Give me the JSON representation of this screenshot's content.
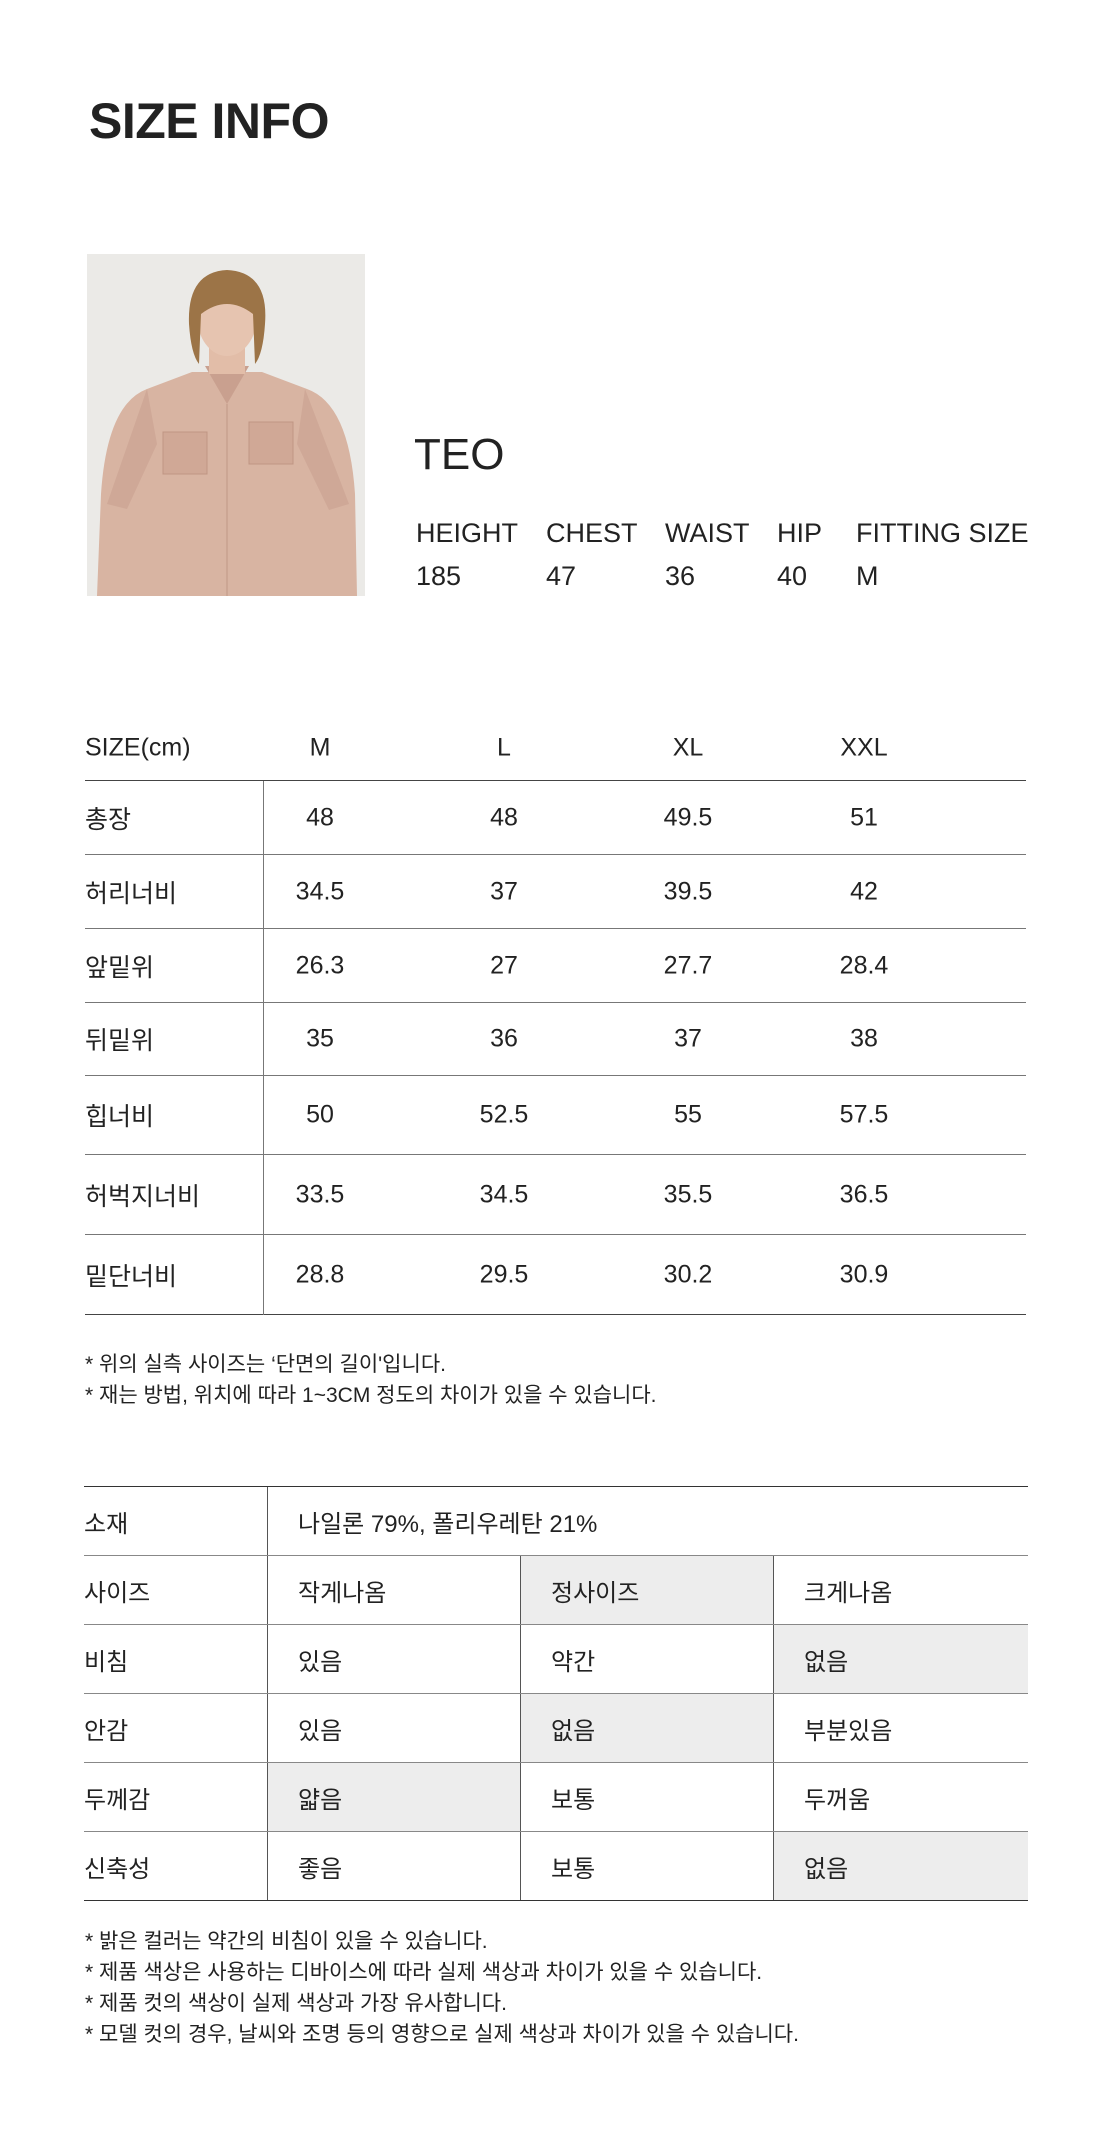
{
  "title": "SIZE INFO",
  "model": {
    "name": "TEO",
    "labels": [
      "HEIGHT",
      "CHEST",
      "WAIST",
      "HIP",
      "FITTING SIZE"
    ],
    "values": [
      "185",
      "47",
      "36",
      "40",
      "M"
    ]
  },
  "size_table": {
    "header_label": "SIZE(cm)",
    "sizes": [
      "M",
      "L",
      "XL",
      "XXL"
    ],
    "rows": [
      {
        "label": "총장",
        "values": [
          "48",
          "48",
          "49.5",
          "51"
        ]
      },
      {
        "label": "허리너비",
        "values": [
          "34.5",
          "37",
          "39.5",
          "42"
        ]
      },
      {
        "label": "앞밑위",
        "values": [
          "26.3",
          "27",
          "27.7",
          "28.4"
        ]
      },
      {
        "label": "뒤밑위",
        "values": [
          "35",
          "36",
          "37",
          "38"
        ]
      },
      {
        "label": "힙너비",
        "values": [
          "50",
          "52.5",
          "55",
          "57.5"
        ]
      },
      {
        "label": "허벅지너비",
        "values": [
          "33.5",
          "34.5",
          "35.5",
          "36.5"
        ]
      },
      {
        "label": "밑단너비",
        "values": [
          "28.8",
          "29.5",
          "30.2",
          "30.9"
        ]
      }
    ],
    "notes": [
      "* 위의 실측 사이즈는 ‘단면의 길이'입니다.",
      "* 재는 방법, 위치에 따라 1~3CM 정도의 차이가 있을 수 있습니다."
    ]
  },
  "fabric_table": {
    "material_label": "소재",
    "material_value": "나일론 79%, 폴리우레탄 21%",
    "highlight_color": "#ededed",
    "rows": [
      {
        "label": "사이즈",
        "options": [
          "작게나옴",
          "정사이즈",
          "크게나옴"
        ],
        "selected": 1
      },
      {
        "label": "비침",
        "options": [
          "있음",
          "약간",
          "없음"
        ],
        "selected": 2
      },
      {
        "label": "안감",
        "options": [
          "있음",
          "없음",
          "부분있음"
        ],
        "selected": 1
      },
      {
        "label": "두께감",
        "options": [
          "얇음",
          "보통",
          "두꺼움"
        ],
        "selected": 0
      },
      {
        "label": "신축성",
        "options": [
          "좋음",
          "보통",
          "없음"
        ],
        "selected": 2
      }
    ],
    "notes": [
      "* 밝은 컬러는 약간의 비침이 있을 수 있습니다.",
      "* 제품 색상은 사용하는 디바이스에 따라 실제 색상과 차이가 있을 수 있습니다.",
      "* 제품 컷의 색상이 실제 색상과 가장 유사합니다.",
      "* 모델 컷의 경우, 날씨와 조명 등의 영향으로 실제 색상과 차이가 있을 수 있습니다."
    ]
  }
}
